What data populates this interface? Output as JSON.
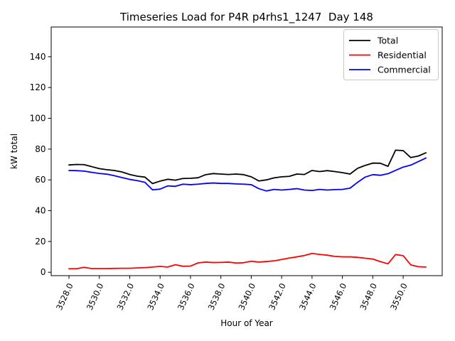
{
  "chart_data": {
    "type": "line",
    "title": "Timeseries Load for P4R p4rhs1_1247  Day 148",
    "xlabel": "Hour of Year",
    "ylabel": "kW total",
    "background": "#ffffff",
    "axis_color": "#000000",
    "legend_border_color": "#c9c9c9",
    "legend_position": "upper right",
    "grid": false,
    "xlim": [
      3526.83,
      3552.57
    ],
    "ylim": [
      -2.2,
      159.3
    ],
    "xticks": {
      "values": [
        3528,
        3530,
        3532,
        3534,
        3536,
        3538,
        3540,
        3542,
        3544,
        3546,
        3548,
        3550
      ],
      "labels": [
        "3528.0",
        "3530.0",
        "3532.0",
        "3534.0",
        "3536.0",
        "3538.0",
        "3540.0",
        "3542.0",
        "3544.0",
        "3546.0",
        "3548.0",
        "3550.0"
      ],
      "rotation_deg": 65
    },
    "yticks": {
      "values": [
        0,
        20,
        40,
        60,
        80,
        100,
        120,
        140
      ],
      "labels": [
        "0",
        "20",
        "40",
        "60",
        "80",
        "100",
        "120",
        "140"
      ]
    },
    "x": [
      3528.0,
      3528.5,
      3529.0,
      3529.5,
      3530.0,
      3530.5,
      3531.0,
      3531.5,
      3532.0,
      3532.5,
      3533.0,
      3533.5,
      3534.0,
      3534.5,
      3535.0,
      3535.5,
      3536.0,
      3536.5,
      3537.0,
      3537.5,
      3538.0,
      3538.5,
      3539.0,
      3539.5,
      3540.0,
      3540.5,
      3541.0,
      3541.5,
      3542.0,
      3542.5,
      3543.0,
      3543.5,
      3544.0,
      3544.5,
      3545.0,
      3545.5,
      3546.0,
      3546.5,
      3547.0,
      3547.5,
      3548.0,
      3548.5,
      3549.0,
      3549.5,
      3550.0,
      3550.5,
      3551.0,
      3551.5
    ],
    "series": [
      {
        "name": "Total",
        "color": "#000000",
        "values": [
          69.7,
          70.0,
          69.9,
          68.6,
          67.3,
          66.6,
          66.1,
          65.1,
          63.5,
          62.4,
          61.8,
          57.6,
          59.2,
          60.4,
          59.8,
          60.9,
          61.0,
          61.4,
          63.4,
          64.1,
          63.8,
          63.5,
          63.8,
          63.4,
          62.0,
          59.3,
          60.0,
          61.3,
          62.0,
          62.3,
          63.8,
          63.5,
          66.1,
          65.4,
          66.0,
          65.4,
          64.7,
          63.8,
          67.5,
          69.4,
          70.9,
          70.8,
          68.8,
          79.3,
          79.0,
          74.5,
          75.5,
          77.6
        ]
      },
      {
        "name": "Residential",
        "color": "#ff0000",
        "values": [
          2.3,
          2.3,
          3.2,
          2.4,
          2.4,
          2.4,
          2.5,
          2.6,
          2.6,
          2.8,
          3.0,
          3.4,
          3.8,
          3.4,
          4.9,
          3.9,
          4.0,
          6.1,
          6.6,
          6.3,
          6.4,
          6.6,
          6.0,
          6.2,
          7.2,
          6.6,
          7.0,
          7.4,
          8.3,
          9.2,
          10.0,
          10.9,
          12.2,
          11.6,
          11.1,
          10.3,
          10.0,
          10.0,
          9.7,
          9.1,
          8.6,
          6.9,
          5.5,
          11.5,
          10.8,
          4.8,
          3.6,
          3.4
        ]
      },
      {
        "name": "Commercial",
        "color": "#0000ff",
        "values": [
          66.1,
          66.0,
          65.7,
          64.9,
          64.2,
          63.7,
          62.7,
          61.5,
          60.3,
          59.5,
          58.4,
          53.5,
          54.0,
          56.1,
          55.8,
          57.2,
          56.9,
          57.2,
          57.7,
          58.0,
          57.7,
          57.7,
          57.4,
          57.2,
          56.9,
          54.3,
          52.8,
          53.8,
          53.4,
          53.8,
          54.3,
          53.4,
          53.1,
          53.8,
          53.4,
          53.7,
          53.8,
          54.6,
          58.4,
          61.8,
          63.4,
          63.0,
          64.0,
          66.2,
          68.3,
          69.6,
          71.9,
          74.2
        ]
      }
    ]
  }
}
